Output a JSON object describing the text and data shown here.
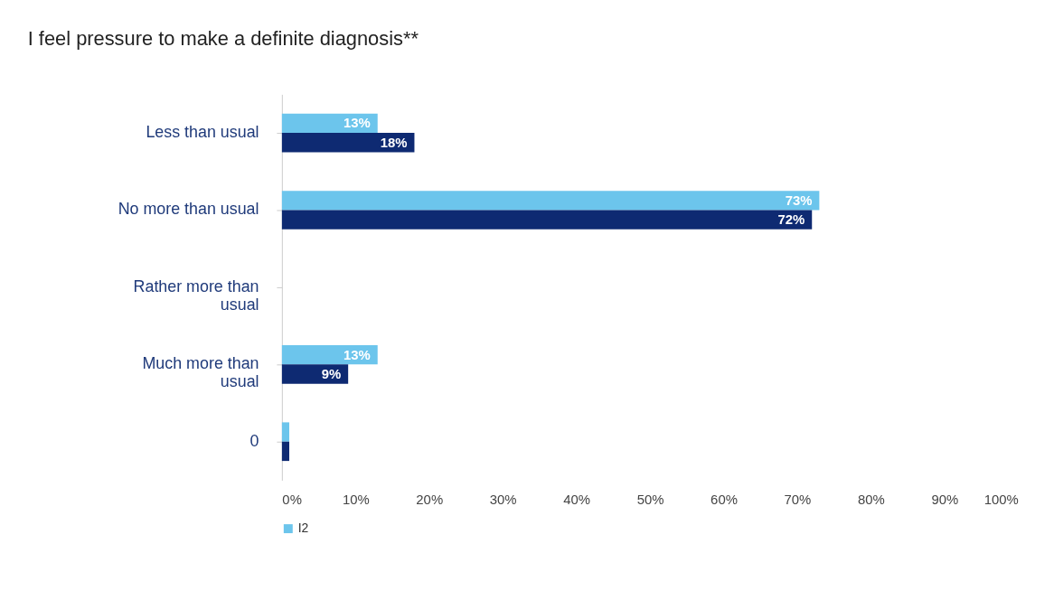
{
  "chart_data": {
    "type": "bar",
    "orientation": "horizontal",
    "title": "I feel pressure to make a definite diagnosis**",
    "categories": [
      "Less than usual",
      "No more than usual",
      "Rather more than usual",
      "Much more than usual",
      "0"
    ],
    "series": [
      {
        "name": "I2",
        "color": "#6cc5ec",
        "values": [
          13,
          73,
          null,
          13,
          1
        ],
        "value_labels": [
          "13%",
          "73%",
          null,
          "13%",
          null
        ]
      },
      {
        "color": "#0e2a72",
        "values": [
          18,
          72,
          null,
          9,
          1
        ],
        "value_labels": [
          "18%",
          "72%",
          null,
          "9%",
          null
        ]
      }
    ],
    "xlim": [
      0,
      100
    ],
    "xticks": [
      {
        "value": 0,
        "label": "0%"
      },
      {
        "value": 10,
        "label": "10%"
      },
      {
        "value": 20,
        "label": "20%"
      },
      {
        "value": 30,
        "label": "30%"
      },
      {
        "value": 40,
        "label": "40%"
      },
      {
        "value": 50,
        "label": "50%"
      },
      {
        "value": 60,
        "label": "60%"
      },
      {
        "value": 70,
        "label": "70%"
      },
      {
        "value": 80,
        "label": "80%"
      },
      {
        "value": 90,
        "label": "90%"
      },
      {
        "value": 100,
        "label": "100%"
      }
    ],
    "grid": false,
    "legend": "bottom"
  }
}
